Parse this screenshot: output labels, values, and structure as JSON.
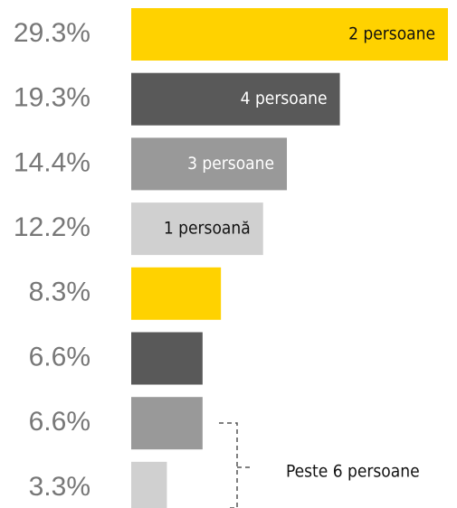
{
  "chart_data": {
    "type": "bar",
    "orientation": "horizontal",
    "categories": [
      "2 persoane",
      "4 persoane",
      "3 persoane",
      "1 persoană",
      null,
      null,
      null,
      null
    ],
    "values": [
      29.3,
      19.3,
      14.4,
      12.2,
      8.3,
      6.6,
      6.6,
      3.3
    ],
    "value_labels": [
      "29.3%",
      "19.3%",
      "14.4%",
      "12.2%",
      "8.3%",
      "6.6%",
      "6.6%",
      "3.3%"
    ],
    "colors": [
      "#FFD200",
      "#595959",
      "#999999",
      "#D0D0D0",
      "#FFD200",
      "#595959",
      "#999999",
      "#D0D0D0"
    ],
    "annotation": "Peste 6 persoane"
  }
}
